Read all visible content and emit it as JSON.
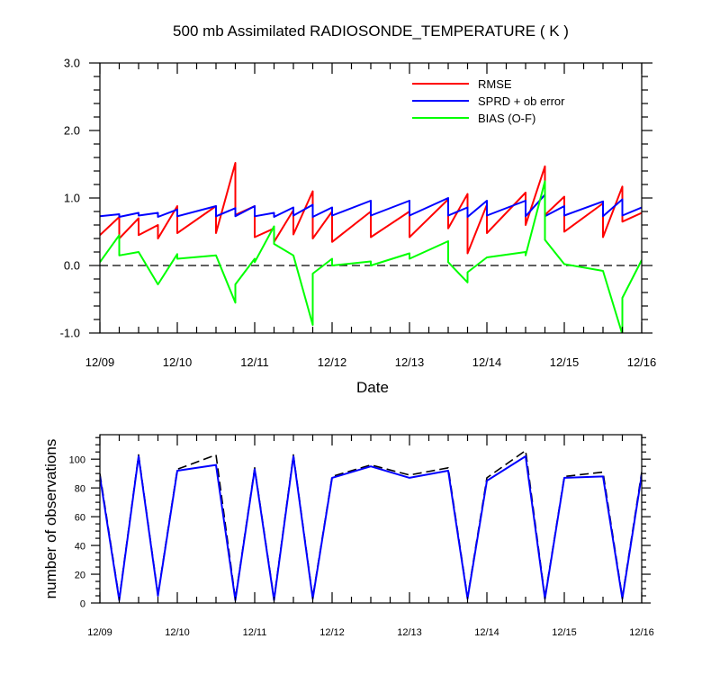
{
  "title": "500 mb Assimilated RADIOSONDE_TEMPERATURE ( K )",
  "chart_data": [
    {
      "type": "line",
      "title": "500 mb Assimilated RADIOSONDE_TEMPERATURE ( K )",
      "xlabel": "Date",
      "ylabel": "",
      "x_tick_labels": [
        "12/09",
        "12/10",
        "12/11",
        "12/12",
        "12/13",
        "12/14",
        "12/15",
        "12/16"
      ],
      "xlim": [
        0,
        7
      ],
      "ylim": [
        -1.0,
        3.0
      ],
      "y_ticks": [
        -1.0,
        0.0,
        1.0,
        2.0,
        3.0
      ],
      "y_tick_labels": [
        "-1.0",
        "0.0",
        "1.0",
        "2.0",
        "3.0"
      ],
      "zero_line": true,
      "legend_position": "top-right",
      "series": [
        {
          "name": "RMSE",
          "color": "#ff0000",
          "points": [
            [
              0.0,
              0.45
            ],
            [
              0.25,
              0.72
            ],
            [
              0.25,
              0.4
            ],
            [
              0.5,
              0.7
            ],
            [
              0.5,
              0.45
            ],
            [
              0.75,
              0.6
            ],
            [
              0.75,
              0.4
            ],
            [
              1.0,
              0.88
            ],
            [
              1.0,
              0.48
            ],
            [
              1.5,
              0.88
            ],
            [
              1.5,
              0.48
            ],
            [
              1.75,
              1.52
            ],
            [
              1.75,
              0.75
            ],
            [
              2.0,
              0.88
            ],
            [
              2.0,
              0.42
            ],
            [
              2.25,
              0.55
            ],
            [
              2.25,
              0.35
            ],
            [
              2.5,
              0.82
            ],
            [
              2.5,
              0.46
            ],
            [
              2.75,
              1.1
            ],
            [
              2.75,
              0.4
            ],
            [
              3.0,
              0.8
            ],
            [
              3.0,
              0.35
            ],
            [
              3.5,
              0.8
            ],
            [
              3.5,
              0.42
            ],
            [
              4.0,
              0.8
            ],
            [
              4.0,
              0.42
            ],
            [
              4.5,
              0.98
            ],
            [
              4.5,
              0.55
            ],
            [
              4.75,
              1.06
            ],
            [
              4.75,
              0.18
            ],
            [
              5.0,
              0.9
            ],
            [
              5.0,
              0.48
            ],
            [
              5.5,
              1.08
            ],
            [
              5.5,
              0.6
            ],
            [
              5.75,
              1.47
            ],
            [
              5.75,
              0.75
            ],
            [
              6.0,
              1.02
            ],
            [
              6.0,
              0.5
            ],
            [
              6.5,
              0.92
            ],
            [
              6.5,
              0.42
            ],
            [
              6.75,
              1.17
            ],
            [
              6.75,
              0.65
            ],
            [
              7.0,
              0.78
            ]
          ]
        },
        {
          "name": "SPRD + ob error",
          "color": "#0000ff",
          "points": [
            [
              0.0,
              0.73
            ],
            [
              0.25,
              0.76
            ],
            [
              0.25,
              0.72
            ],
            [
              0.5,
              0.78
            ],
            [
              0.5,
              0.74
            ],
            [
              0.75,
              0.78
            ],
            [
              0.75,
              0.72
            ],
            [
              1.0,
              0.83
            ],
            [
              1.0,
              0.73
            ],
            [
              1.5,
              0.88
            ],
            [
              1.5,
              0.73
            ],
            [
              1.75,
              0.85
            ],
            [
              1.75,
              0.73
            ],
            [
              2.0,
              0.88
            ],
            [
              2.0,
              0.73
            ],
            [
              2.25,
              0.78
            ],
            [
              2.25,
              0.72
            ],
            [
              2.5,
              0.86
            ],
            [
              2.5,
              0.74
            ],
            [
              2.75,
              0.9
            ],
            [
              2.75,
              0.72
            ],
            [
              3.0,
              0.86
            ],
            [
              3.0,
              0.74
            ],
            [
              3.5,
              0.96
            ],
            [
              3.5,
              0.74
            ],
            [
              4.0,
              0.96
            ],
            [
              4.0,
              0.74
            ],
            [
              4.5,
              1.0
            ],
            [
              4.5,
              0.74
            ],
            [
              4.75,
              0.86
            ],
            [
              4.75,
              0.72
            ],
            [
              5.0,
              0.96
            ],
            [
              5.0,
              0.74
            ],
            [
              5.5,
              0.96
            ],
            [
              5.5,
              0.73
            ],
            [
              5.75,
              1.05
            ],
            [
              5.75,
              0.73
            ],
            [
              6.0,
              0.88
            ],
            [
              6.0,
              0.74
            ],
            [
              6.5,
              0.95
            ],
            [
              6.5,
              0.73
            ],
            [
              6.75,
              0.98
            ],
            [
              6.75,
              0.74
            ],
            [
              7.0,
              0.86
            ]
          ]
        },
        {
          "name": "BIAS (O-F)",
          "color": "#00ff00",
          "points": [
            [
              0.0,
              0.05
            ],
            [
              0.25,
              0.45
            ],
            [
              0.25,
              0.15
            ],
            [
              0.5,
              0.2
            ],
            [
              0.75,
              -0.28
            ],
            [
              1.0,
              0.17
            ],
            [
              1.0,
              0.1
            ],
            [
              1.5,
              0.15
            ],
            [
              1.75,
              -0.55
            ],
            [
              1.75,
              -0.28
            ],
            [
              2.0,
              0.1
            ],
            [
              2.0,
              0.05
            ],
            [
              2.25,
              0.58
            ],
            [
              2.25,
              0.32
            ],
            [
              2.5,
              0.15
            ],
            [
              2.75,
              -0.88
            ],
            [
              2.75,
              -0.12
            ],
            [
              3.0,
              0.1
            ],
            [
              3.0,
              0.0
            ],
            [
              3.5,
              0.06
            ],
            [
              3.5,
              0.0
            ],
            [
              4.0,
              0.18
            ],
            [
              4.0,
              0.1
            ],
            [
              4.5,
              0.36
            ],
            [
              4.5,
              0.05
            ],
            [
              4.75,
              -0.25
            ],
            [
              4.75,
              -0.1
            ],
            [
              5.0,
              0.12
            ],
            [
              5.5,
              0.2
            ],
            [
              5.5,
              0.15
            ],
            [
              5.75,
              1.25
            ],
            [
              5.75,
              0.38
            ],
            [
              6.0,
              0.02
            ],
            [
              6.5,
              -0.08
            ],
            [
              6.75,
              -1.02
            ],
            [
              6.75,
              -0.48
            ],
            [
              7.0,
              0.08
            ]
          ]
        }
      ]
    },
    {
      "type": "line",
      "title": "",
      "xlabel": "",
      "ylabel": "number of observations",
      "x_tick_labels": [
        "12/09",
        "12/10",
        "12/11",
        "12/12",
        "12/13",
        "12/14",
        "12/15",
        "12/16"
      ],
      "xlim": [
        0,
        7
      ],
      "ylim": [
        0,
        117
      ],
      "y_ticks": [
        0,
        20,
        40,
        60,
        80,
        100
      ],
      "y_tick_labels": [
        "0",
        "20",
        "40",
        "60",
        "80",
        "100"
      ],
      "series": [
        {
          "style": "dashed",
          "color": "#000000",
          "points": [
            [
              0.0,
              90
            ],
            [
              0.25,
              3
            ],
            [
              0.5,
              103
            ],
            [
              0.75,
              6
            ],
            [
              1.0,
              93
            ],
            [
              1.5,
              103
            ],
            [
              1.75,
              3
            ],
            [
              2.0,
              94
            ],
            [
              2.25,
              3
            ],
            [
              2.5,
              103
            ],
            [
              2.75,
              4
            ],
            [
              3.0,
              88
            ],
            [
              3.5,
              96
            ],
            [
              4.0,
              89
            ],
            [
              4.5,
              94
            ],
            [
              4.75,
              4
            ],
            [
              5.0,
              87
            ],
            [
              5.5,
              106
            ],
            [
              5.75,
              4
            ],
            [
              6.0,
              88
            ],
            [
              6.5,
              91
            ],
            [
              6.75,
              4
            ],
            [
              7.0,
              91
            ]
          ]
        },
        {
          "style": "solid",
          "color": "#0000ff",
          "points": [
            [
              0.0,
              88
            ],
            [
              0.25,
              2
            ],
            [
              0.5,
              102
            ],
            [
              0.75,
              5
            ],
            [
              1.0,
              92
            ],
            [
              1.5,
              96
            ],
            [
              1.75,
              2
            ],
            [
              2.0,
              93
            ],
            [
              2.25,
              2
            ],
            [
              2.5,
              102
            ],
            [
              2.75,
              3
            ],
            [
              3.0,
              87
            ],
            [
              3.5,
              95
            ],
            [
              4.0,
              87
            ],
            [
              4.5,
              92
            ],
            [
              4.75,
              3
            ],
            [
              5.0,
              85
            ],
            [
              5.5,
              102
            ],
            [
              5.75,
              3
            ],
            [
              6.0,
              87
            ],
            [
              6.5,
              88
            ],
            [
              6.75,
              3
            ],
            [
              7.0,
              89
            ]
          ]
        }
      ]
    }
  ]
}
